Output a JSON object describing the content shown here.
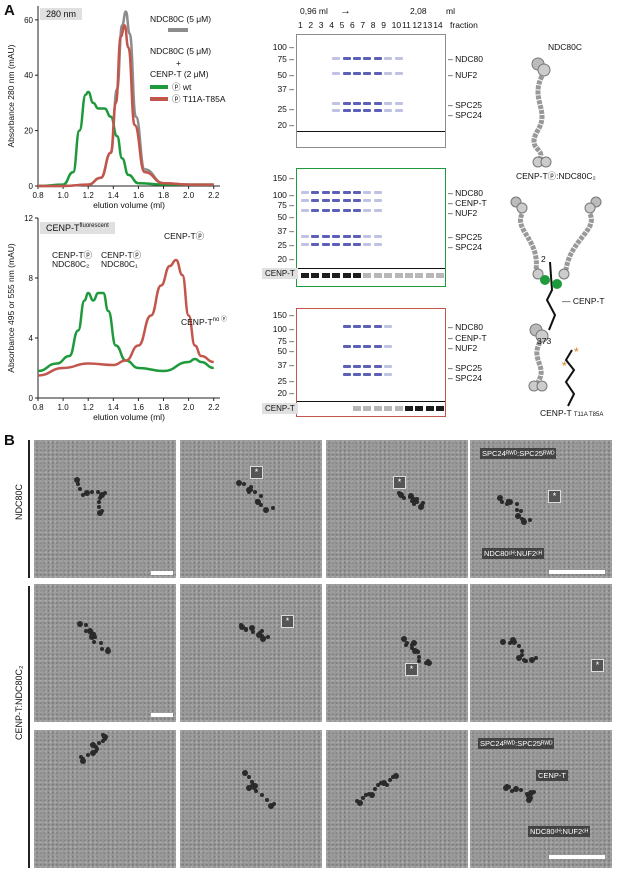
{
  "panels": {
    "a": "A",
    "b": "B"
  },
  "chart_top": {
    "badge": "280 nm",
    "ylabel": "Absorbance 280 nm (mAU)",
    "xlabel": "elution volume (ml)",
    "yticks": [
      "0",
      "20",
      "40",
      "60"
    ],
    "xticks": [
      "0.8",
      "1.0",
      "1.2",
      "1.4",
      "1.6",
      "1.8",
      "2.0",
      "2.2"
    ],
    "legend": {
      "ndc": "NDC80C (5 μM)",
      "mix1": "NDC80C (5 μM)",
      "plus": "+",
      "mix2": "CENP-T (2 μM)",
      "wt": "ⓟ wt",
      "mut": "ⓟ T11A-T85A"
    },
    "colors": {
      "gray": "#8c8c8c",
      "green": "#1e9a3c",
      "red": "#c2564c"
    }
  },
  "chart_bottom": {
    "badge": "CENP-T",
    "badge_sup": "fluorescent",
    "ylabel": "Absorbance 495 or 555 nm (mAU)",
    "xlabel": "elution volume (ml)",
    "yticks": [
      "0",
      "4",
      "8",
      "12"
    ],
    "xticks": [
      "0.8",
      "1.0",
      "1.2",
      "1.4",
      "1.6",
      "1.8",
      "2.0",
      "2.2"
    ],
    "ann1a": "CENP-Tⓟ",
    "ann1b": "NDC80C₂",
    "ann2a": "CENP-Tⓟ",
    "ann2b": "NDC80C₁",
    "ann3": "CENP-Tⓟ",
    "ann4": "CENP-T",
    "ann4sup": "no ⓟ"
  },
  "chart_data": [
    {
      "type": "line",
      "title": "280 nm",
      "xlabel": "elution volume (ml)",
      "ylabel": "Absorbance 280 nm (mAU)",
      "xlim": [
        0.8,
        2.25
      ],
      "ylim": [
        0,
        65
      ],
      "series": [
        {
          "name": "NDC80C (5 μM)",
          "color": "#8c8c8c",
          "x": [
            0.8,
            1.0,
            1.2,
            1.3,
            1.38,
            1.43,
            1.47,
            1.5,
            1.53,
            1.58,
            1.65,
            1.8,
            2.0,
            2.2
          ],
          "y": [
            0,
            0,
            0.5,
            3,
            12,
            35,
            58,
            63,
            55,
            25,
            6,
            1,
            0.5,
            0.5
          ]
        },
        {
          "name": "ⓟ wt",
          "color": "#1e9a3c",
          "x": [
            0.8,
            1.0,
            1.08,
            1.13,
            1.18,
            1.2,
            1.24,
            1.28,
            1.33,
            1.38,
            1.43,
            1.47,
            1.52,
            1.6,
            1.8,
            2.0,
            2.2
          ],
          "y": [
            0,
            0.5,
            5,
            20,
            33,
            34,
            30,
            28,
            28,
            25,
            18,
            10,
            4,
            1,
            0.5,
            0.5,
            0.5
          ]
        },
        {
          "name": "ⓟ T11A-T85A",
          "color": "#c2564c",
          "x": [
            0.8,
            1.0,
            1.2,
            1.3,
            1.38,
            1.42,
            1.46,
            1.49,
            1.52,
            1.57,
            1.65,
            1.8,
            2.0,
            2.2
          ],
          "y": [
            0,
            0,
            0.5,
            3,
            12,
            30,
            54,
            58,
            50,
            22,
            5,
            1,
            0.5,
            0.5
          ]
        }
      ]
    },
    {
      "type": "line",
      "title": "CENP-T fluorescent",
      "xlabel": "elution volume (ml)",
      "ylabel": "Absorbance 495 or 555 nm (mAU)",
      "xlim": [
        0.8,
        2.25
      ],
      "ylim": [
        0,
        12
      ],
      "series": [
        {
          "name": "ⓟ wt",
          "color": "#1e9a3c",
          "x": [
            0.8,
            0.95,
            1.05,
            1.12,
            1.17,
            1.2,
            1.24,
            1.28,
            1.32,
            1.36,
            1.42,
            1.5,
            1.6,
            1.8,
            2.0,
            2.05,
            2.1,
            2.2
          ],
          "y": [
            1.8,
            2.3,
            2.8,
            4.5,
            6.5,
            7.0,
            6.5,
            7.0,
            7.0,
            5.8,
            3.5,
            2.5,
            2.0,
            1.8,
            2.4,
            2.6,
            2.4,
            2.0
          ]
        },
        {
          "name": "ⓟ T11A-T85A",
          "color": "#c2564c",
          "x": [
            0.8,
            1.0,
            1.2,
            1.4,
            1.5,
            1.6,
            1.7,
            1.78,
            1.85,
            1.9,
            1.95,
            2.0,
            2.05,
            2.1,
            2.2
          ],
          "y": [
            1.5,
            2.0,
            2.3,
            2.2,
            2.5,
            3.5,
            5.5,
            7.5,
            8.8,
            9.2,
            8.2,
            5.5,
            3.5,
            2.8,
            2.4
          ]
        }
      ]
    }
  ],
  "gels": {
    "header": {
      "start": "0,96 ml",
      "arrow": "→",
      "end": "2,08",
      "unit": "ml",
      "fraction": "fraction",
      "lanes": [
        "1",
        "2",
        "3",
        "4",
        "5",
        "6",
        "7",
        "8",
        "9",
        "10",
        "11",
        "12",
        "13",
        "14"
      ]
    },
    "mw_top": [
      "100",
      "75",
      "50",
      "37",
      "25",
      "20"
    ],
    "mw": [
      "150",
      "100",
      "75",
      "50",
      "37",
      "25",
      "20"
    ],
    "g1": {
      "labels": [
        "NDC80",
        "NUF2",
        "SPC25",
        "SPC24"
      ],
      "color": "#8c8c8c"
    },
    "g2": {
      "labels": [
        "NDC80",
        "CENP-T",
        "NUF2",
        "SPC25",
        "SPC24"
      ],
      "strip": "CENP-T",
      "color": "#1e9a3c"
    },
    "g3": {
      "labels": [
        "NDC80",
        "CENP-T",
        "NUF2",
        "SPC25",
        "SPC24"
      ],
      "strip": "CENP-T",
      "color": "#c2564c"
    }
  },
  "cartoons": {
    "c1": "NDC80C",
    "c2": "CENP-Tⓟ:NDC80C₂",
    "c2_num1": "2",
    "c2_num2": "373",
    "c2_lbl": "CENP-T",
    "c3": "CENP-T",
    "c3_sub": "T11A T85A"
  },
  "em": {
    "row1_label": "NDC80C",
    "row2_label": "CENP-T:NDC80C₂",
    "ann_spc": "SPC24ᴿᵂᴰ:SPC25ᴿᵂᴰ",
    "ann_ndc": "NDC80ᶜᴴ:NUF2ᶜᴴ",
    "ann_cenpt": "CENP-T",
    "star": "*"
  }
}
